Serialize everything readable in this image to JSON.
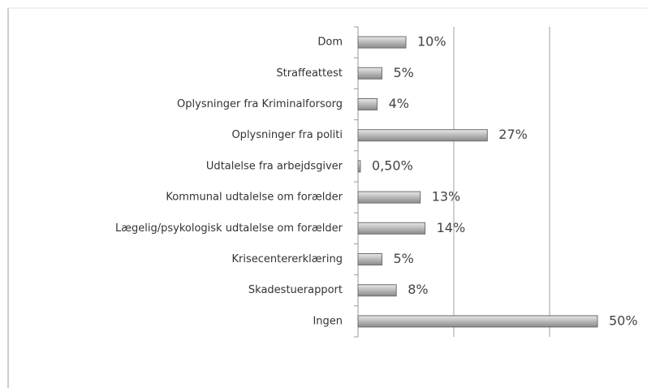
{
  "chart_data": {
    "type": "hbar",
    "categories": [
      "Dom",
      "Straffeattest",
      "Oplysninger fra Kriminalforsorg",
      "Oplysninger fra politi",
      "Udtalelse fra arbejdsgiver",
      "Kommunal udtalelse om forælder",
      "Lægelig/psykologisk udtalelse om forælder",
      "Krisecentererklæring",
      "Skadestuerapport",
      "Ingen"
    ],
    "values": [
      10,
      5,
      4,
      27,
      0.5,
      13,
      14,
      5,
      8,
      50
    ],
    "value_labels": [
      "10%",
      "5%",
      "4%",
      "27%",
      "0,50%",
      "13%",
      "14%",
      "5%",
      "8%",
      "50%"
    ],
    "color": "#a6a6a6",
    "xlim": [
      0,
      60
    ],
    "xticks": [
      20,
      40
    ],
    "grid": true
  }
}
